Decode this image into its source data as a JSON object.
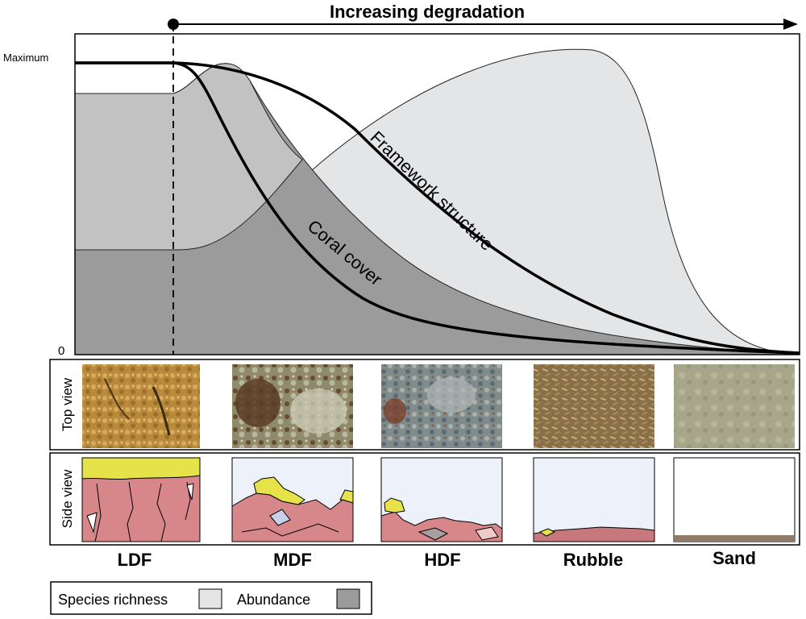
{
  "header": {
    "title": "Increasing degradation"
  },
  "axis": {
    "y_max_label": "Maximum",
    "y_min_label": "0"
  },
  "curves": {
    "framework": {
      "label": "Framework structure"
    },
    "coral": {
      "label": "Coral cover"
    }
  },
  "panels": {
    "top_view_label": "Top view",
    "side_view_label": "Side view"
  },
  "categories": [
    "LDF",
    "MDF",
    "HDF",
    "Rubble",
    "Sand"
  ],
  "legend": {
    "species_richness": "Species richness",
    "abundance": "Abundance"
  },
  "colors": {
    "species_richness": "#e4e5e7",
    "abundance": "#9b9b9b",
    "overlap": "#c2c2c2",
    "reef_pink": "#d7868a",
    "algae_yellow": "#e6e24a",
    "water": "#edf1fa",
    "sand": "#8e7b6a"
  }
}
